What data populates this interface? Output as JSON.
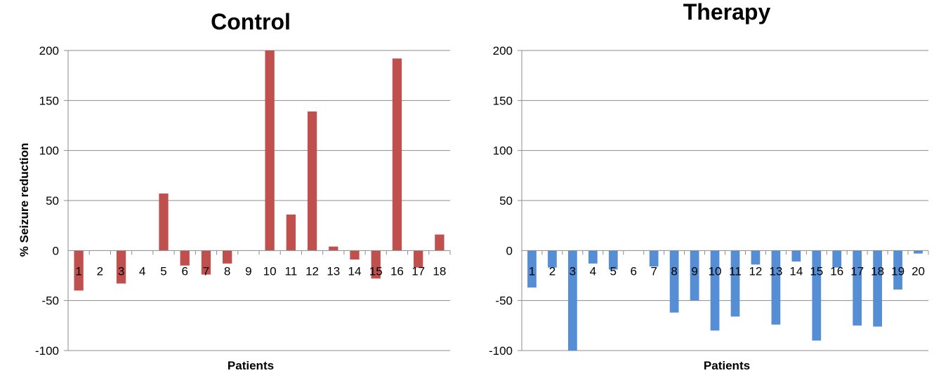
{
  "ylabel": "% Seizure reduction",
  "chart_data": [
    {
      "type": "bar",
      "title": "Control",
      "xlabel": "Patients",
      "ylabel": "% Seizure reduction",
      "ylim": [
        -100,
        200
      ],
      "yticks": [
        200,
        150,
        100,
        50,
        0,
        -50,
        -100
      ],
      "grid": true,
      "color": "#c0504d",
      "categories": [
        "1",
        "2",
        "3",
        "4",
        "5",
        "6",
        "7",
        "8",
        "9",
        "10",
        "11",
        "12",
        "13",
        "14",
        "15",
        "16",
        "17",
        "18"
      ],
      "values": [
        -40,
        0,
        -33,
        0,
        57,
        -15,
        -24,
        -13,
        0,
        200,
        36,
        139,
        4,
        -9,
        -28,
        192,
        -17,
        16
      ]
    },
    {
      "type": "bar",
      "title": "Therapy",
      "xlabel": "Patients",
      "ylabel": "",
      "ylim": [
        -100,
        200
      ],
      "yticks": [
        200,
        150,
        100,
        50,
        0,
        -50,
        -100
      ],
      "grid": true,
      "color": "#558ed5",
      "categories": [
        "1",
        "2",
        "3",
        "4",
        "5",
        "6",
        "7",
        "8",
        "9",
        "10",
        "11",
        "12",
        "13",
        "14",
        "15",
        "16",
        "17",
        "18",
        "19",
        "20"
      ],
      "values": [
        -37,
        -17,
        -100,
        -13,
        -19,
        0,
        -16,
        -62,
        -50,
        -80,
        -66,
        -14,
        -74,
        -11,
        -90,
        -17,
        -75,
        -76,
        -39,
        -3
      ]
    }
  ]
}
